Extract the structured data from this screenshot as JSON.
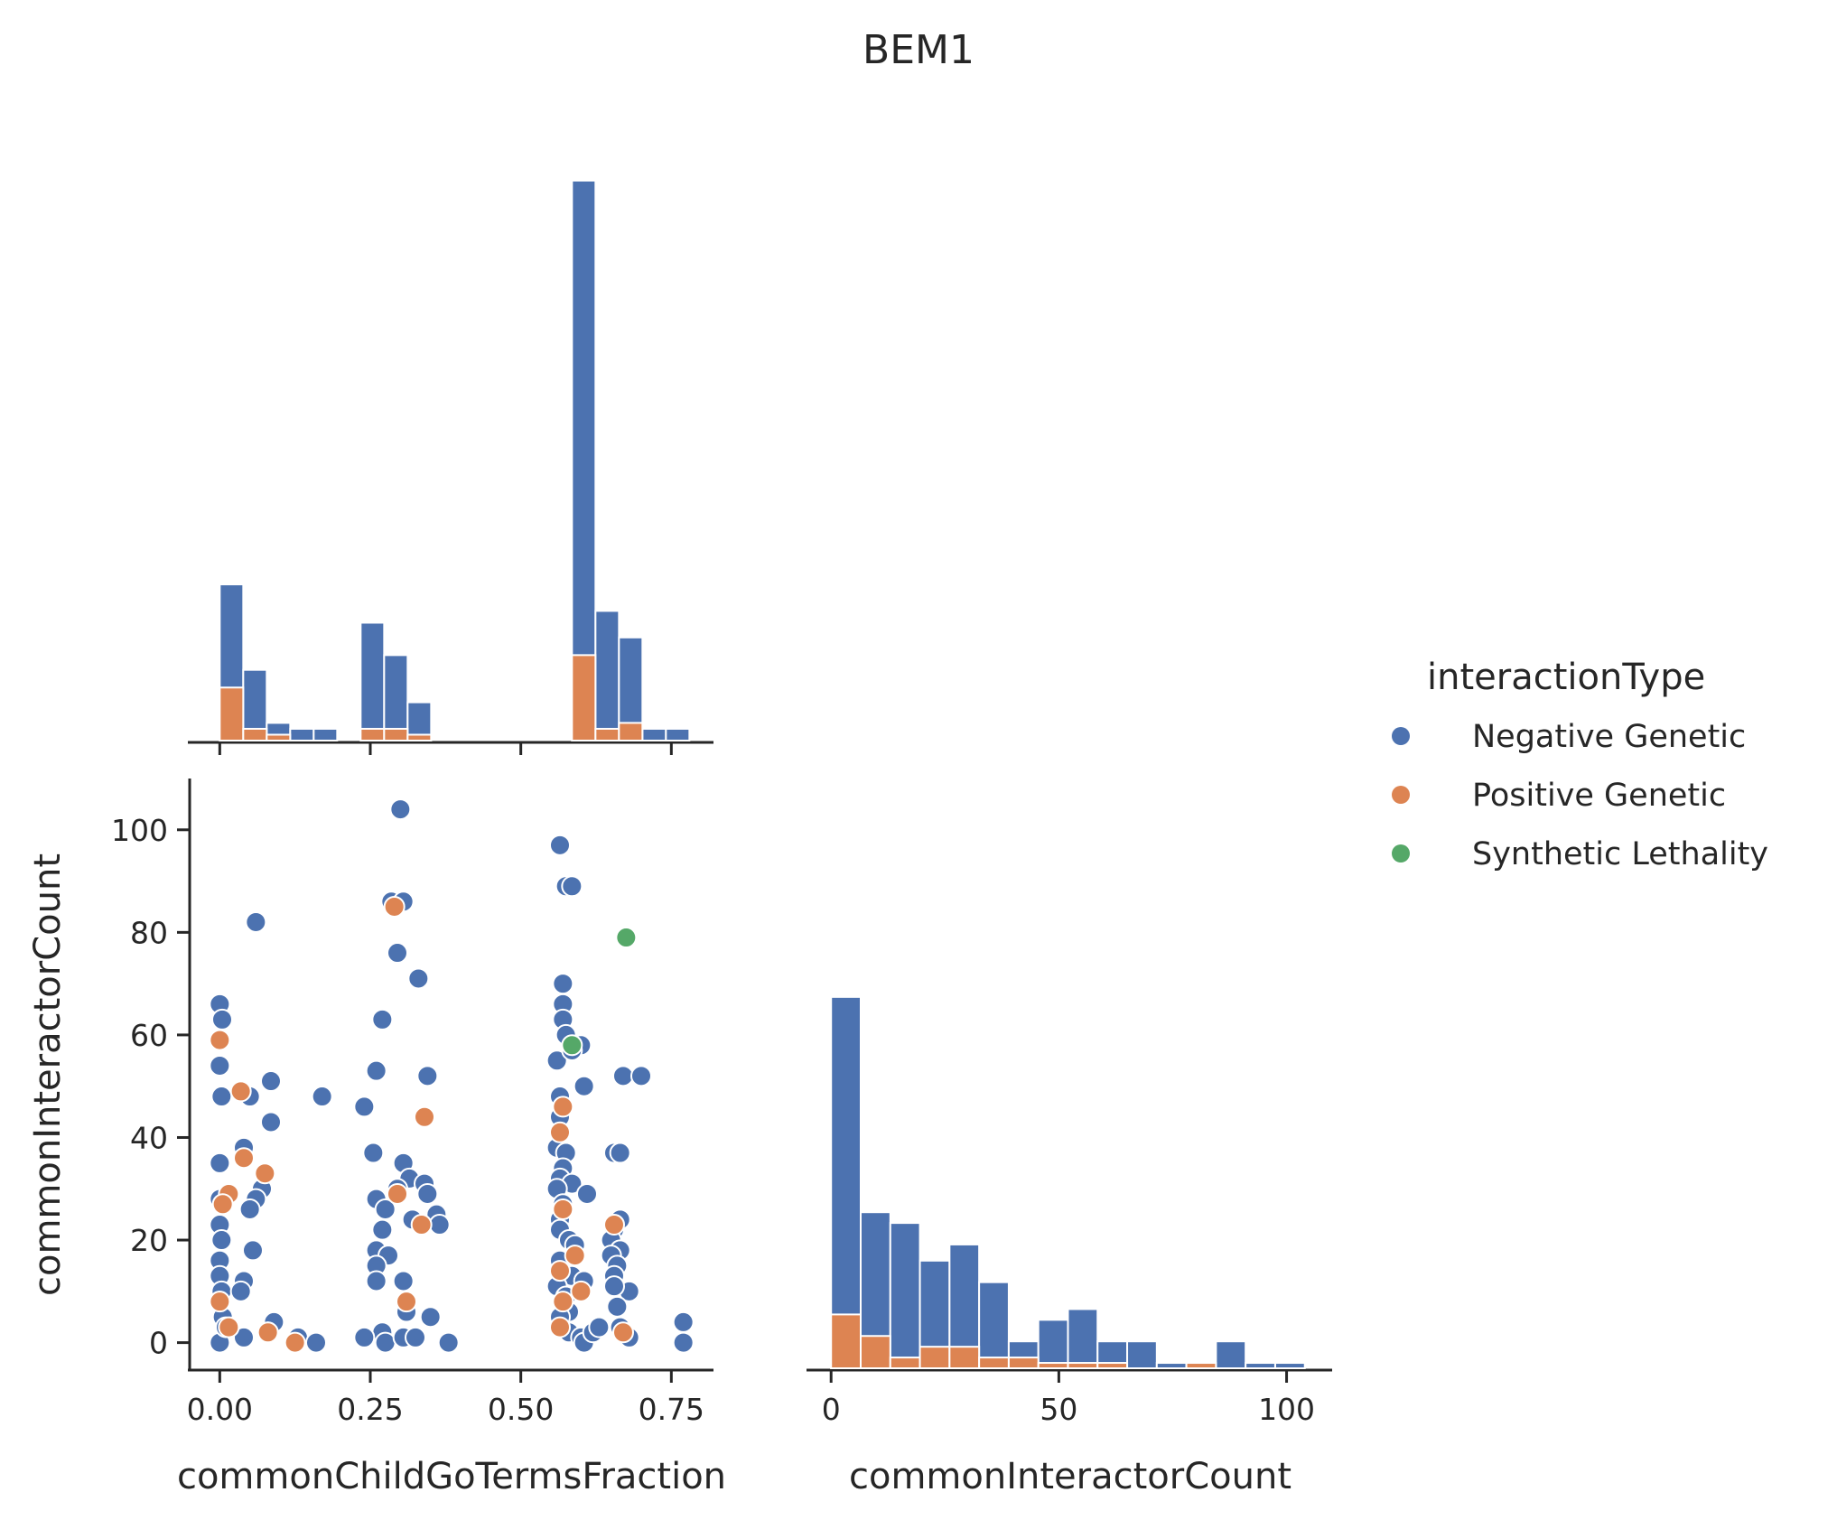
{
  "title": "BEM1",
  "colors": {
    "Negative Genetic": "#4c72b0",
    "Positive Genetic": "#dd8452",
    "Synthetic Lethality": "#55a868"
  },
  "legend": {
    "title": "interactionType",
    "placement": "right",
    "entries": [
      "Negative Genetic",
      "Positive Genetic",
      "Synthetic Lethality"
    ]
  },
  "chart_data": [
    {
      "panel": "diagonal-top-left",
      "type": "bar",
      "variable": "commonChildGoTermsFraction",
      "stacked": false,
      "xlim": [
        -0.05,
        0.82
      ],
      "x_ticks": [
        0.0,
        0.25,
        0.5,
        0.75
      ],
      "ylim": [
        0,
        190
      ],
      "bin_edges": [
        0.0,
        0.039,
        0.078,
        0.117,
        0.156,
        0.195,
        0.234,
        0.273,
        0.312,
        0.351,
        0.39,
        0.429,
        0.468,
        0.507,
        0.546,
        0.585,
        0.624,
        0.663,
        0.702,
        0.741,
        0.78
      ],
      "series": [
        {
          "name": "Negative Genetic",
          "values": [
            53,
            24,
            6,
            4,
            4,
            0,
            40,
            29,
            13,
            0,
            0,
            0,
            0,
            0,
            0,
            190,
            44,
            35,
            4,
            4
          ]
        },
        {
          "name": "Positive Genetic",
          "values": [
            0,
            0,
            0,
            0,
            0,
            0,
            0,
            0,
            0,
            0,
            0,
            0,
            0,
            0,
            0,
            0,
            0,
            0,
            0,
            0
          ]
        }
      ],
      "positive_values": [
        18,
        4,
        2,
        0,
        0,
        0,
        4,
        4,
        2,
        0,
        0,
        0,
        0,
        0,
        0,
        29,
        4,
        6,
        0,
        0
      ]
    },
    {
      "panel": "scatter-bottom-left",
      "type": "scatter",
      "xlabel": "commonChildGoTermsFraction",
      "ylabel": "commonInteractorCount",
      "xlim": [
        -0.05,
        0.82
      ],
      "ylim": [
        -5,
        110
      ],
      "x_ticks": [
        "0.00",
        "0.25",
        "0.50",
        "0.75"
      ],
      "y_ticks": [
        "0",
        "20",
        "40",
        "60",
        "80",
        "100"
      ],
      "series": [
        {
          "name": "Negative Genetic",
          "points": [
            [
              0.0,
              66
            ],
            [
              0.004,
              63
            ],
            [
              0.0,
              54
            ],
            [
              0.003,
              48
            ],
            [
              0.0,
              35
            ],
            [
              0.0,
              28
            ],
            [
              0.0,
              23
            ],
            [
              0.003,
              20
            ],
            [
              0.0,
              16
            ],
            [
              0.0,
              13
            ],
            [
              0.003,
              10
            ],
            [
              0.0,
              8
            ],
            [
              0.005,
              5
            ],
            [
              0.0,
              0
            ],
            [
              0.01,
              3
            ],
            [
              0.06,
              82
            ],
            [
              0.085,
              51
            ],
            [
              0.05,
              48
            ],
            [
              0.085,
              43
            ],
            [
              0.04,
              38
            ],
            [
              0.07,
              30
            ],
            [
              0.06,
              28
            ],
            [
              0.05,
              26
            ],
            [
              0.055,
              18
            ],
            [
              0.04,
              12
            ],
            [
              0.035,
              10
            ],
            [
              0.04,
              1
            ],
            [
              0.09,
              4
            ],
            [
              0.08,
              2
            ],
            [
              0.13,
              1
            ],
            [
              0.16,
              0
            ],
            [
              0.17,
              48
            ],
            [
              0.24,
              46
            ],
            [
              0.3,
              104
            ],
            [
              0.285,
              86
            ],
            [
              0.305,
              86
            ],
            [
              0.295,
              76
            ],
            [
              0.33,
              71
            ],
            [
              0.27,
              63
            ],
            [
              0.26,
              53
            ],
            [
              0.345,
              52
            ],
            [
              0.255,
              37
            ],
            [
              0.305,
              35
            ],
            [
              0.315,
              32
            ],
            [
              0.34,
              31
            ],
            [
              0.295,
              30
            ],
            [
              0.345,
              29
            ],
            [
              0.26,
              28
            ],
            [
              0.275,
              26
            ],
            [
              0.36,
              25
            ],
            [
              0.32,
              24
            ],
            [
              0.365,
              23
            ],
            [
              0.27,
              22
            ],
            [
              0.26,
              18
            ],
            [
              0.28,
              17
            ],
            [
              0.26,
              15
            ],
            [
              0.26,
              12
            ],
            [
              0.305,
              12
            ],
            [
              0.31,
              6
            ],
            [
              0.35,
              5
            ],
            [
              0.27,
              2
            ],
            [
              0.24,
              1
            ],
            [
              0.275,
              0
            ],
            [
              0.305,
              1
            ],
            [
              0.325,
              1
            ],
            [
              0.38,
              0
            ],
            [
              0.565,
              97
            ],
            [
              0.575,
              89
            ],
            [
              0.585,
              89
            ],
            [
              0.57,
              70
            ],
            [
              0.57,
              66
            ],
            [
              0.57,
              63
            ],
            [
              0.575,
              60
            ],
            [
              0.6,
              58
            ],
            [
              0.56,
              55
            ],
            [
              0.585,
              57
            ],
            [
              0.605,
              50
            ],
            [
              0.565,
              48
            ],
            [
              0.565,
              44
            ],
            [
              0.56,
              38
            ],
            [
              0.575,
              37
            ],
            [
              0.57,
              34
            ],
            [
              0.565,
              32
            ],
            [
              0.585,
              31
            ],
            [
              0.56,
              30
            ],
            [
              0.61,
              29
            ],
            [
              0.57,
              27
            ],
            [
              0.565,
              24
            ],
            [
              0.565,
              22
            ],
            [
              0.58,
              20
            ],
            [
              0.59,
              19
            ],
            [
              0.565,
              16
            ],
            [
              0.585,
              13
            ],
            [
              0.605,
              12
            ],
            [
              0.56,
              11
            ],
            [
              0.575,
              9
            ],
            [
              0.58,
              6
            ],
            [
              0.565,
              5
            ],
            [
              0.58,
              2
            ],
            [
              0.6,
              1
            ],
            [
              0.605,
              0
            ],
            [
              0.62,
              2
            ],
            [
              0.63,
              3
            ],
            [
              0.655,
              37
            ],
            [
              0.665,
              37
            ],
            [
              0.67,
              52
            ],
            [
              0.7,
              52
            ],
            [
              0.665,
              24
            ],
            [
              0.655,
              22
            ],
            [
              0.65,
              20
            ],
            [
              0.665,
              18
            ],
            [
              0.65,
              17
            ],
            [
              0.66,
              15
            ],
            [
              0.655,
              13
            ],
            [
              0.68,
              10
            ],
            [
              0.655,
              11
            ],
            [
              0.66,
              7
            ],
            [
              0.665,
              3
            ],
            [
              0.68,
              1
            ],
            [
              0.77,
              4
            ],
            [
              0.77,
              0
            ]
          ]
        },
        {
          "name": "Positive Genetic",
          "points": [
            [
              0.0,
              59
            ],
            [
              0.035,
              49
            ],
            [
              0.04,
              36
            ],
            [
              0.075,
              33
            ],
            [
              0.015,
              29
            ],
            [
              0.005,
              27
            ],
            [
              0.0,
              8
            ],
            [
              0.015,
              3
            ],
            [
              0.08,
              2
            ],
            [
              0.125,
              0
            ],
            [
              0.29,
              85
            ],
            [
              0.34,
              44
            ],
            [
              0.295,
              29
            ],
            [
              0.335,
              23
            ],
            [
              0.31,
              8
            ],
            [
              0.57,
              46
            ],
            [
              0.565,
              41
            ],
            [
              0.57,
              26
            ],
            [
              0.59,
              17
            ],
            [
              0.565,
              14
            ],
            [
              0.57,
              8
            ],
            [
              0.565,
              3
            ],
            [
              0.6,
              10
            ],
            [
              0.655,
              23
            ],
            [
              0.67,
              2
            ]
          ]
        },
        {
          "name": "Synthetic Lethality",
          "points": [
            [
              0.675,
              79
            ],
            [
              0.585,
              58
            ]
          ]
        }
      ]
    },
    {
      "panel": "diagonal-bottom-right",
      "type": "bar",
      "variable": "commonInteractorCount",
      "xlabel": "commonInteractorCount",
      "xlim": [
        -5,
        110
      ],
      "x_ticks": [
        "0",
        "50",
        "100"
      ],
      "ylim": [
        0,
        73
      ],
      "bin_edges": [
        0,
        6.5,
        13,
        19.5,
        26,
        32.5,
        39,
        45.5,
        52,
        58.5,
        65,
        71.5,
        78,
        84.5,
        91,
        97.5,
        104
      ],
      "series": [
        {
          "name": "Negative Genetic",
          "values": [
            69,
            29,
            27,
            20,
            23,
            16,
            5,
            9,
            11,
            5,
            5,
            1,
            1,
            5,
            1,
            1
          ]
        },
        {
          "name": "Positive Genetic",
          "values": [
            10,
            6,
            2,
            4,
            4,
            2,
            2,
            1,
            1,
            1,
            0,
            0,
            1,
            0,
            0,
            0
          ]
        }
      ]
    }
  ]
}
